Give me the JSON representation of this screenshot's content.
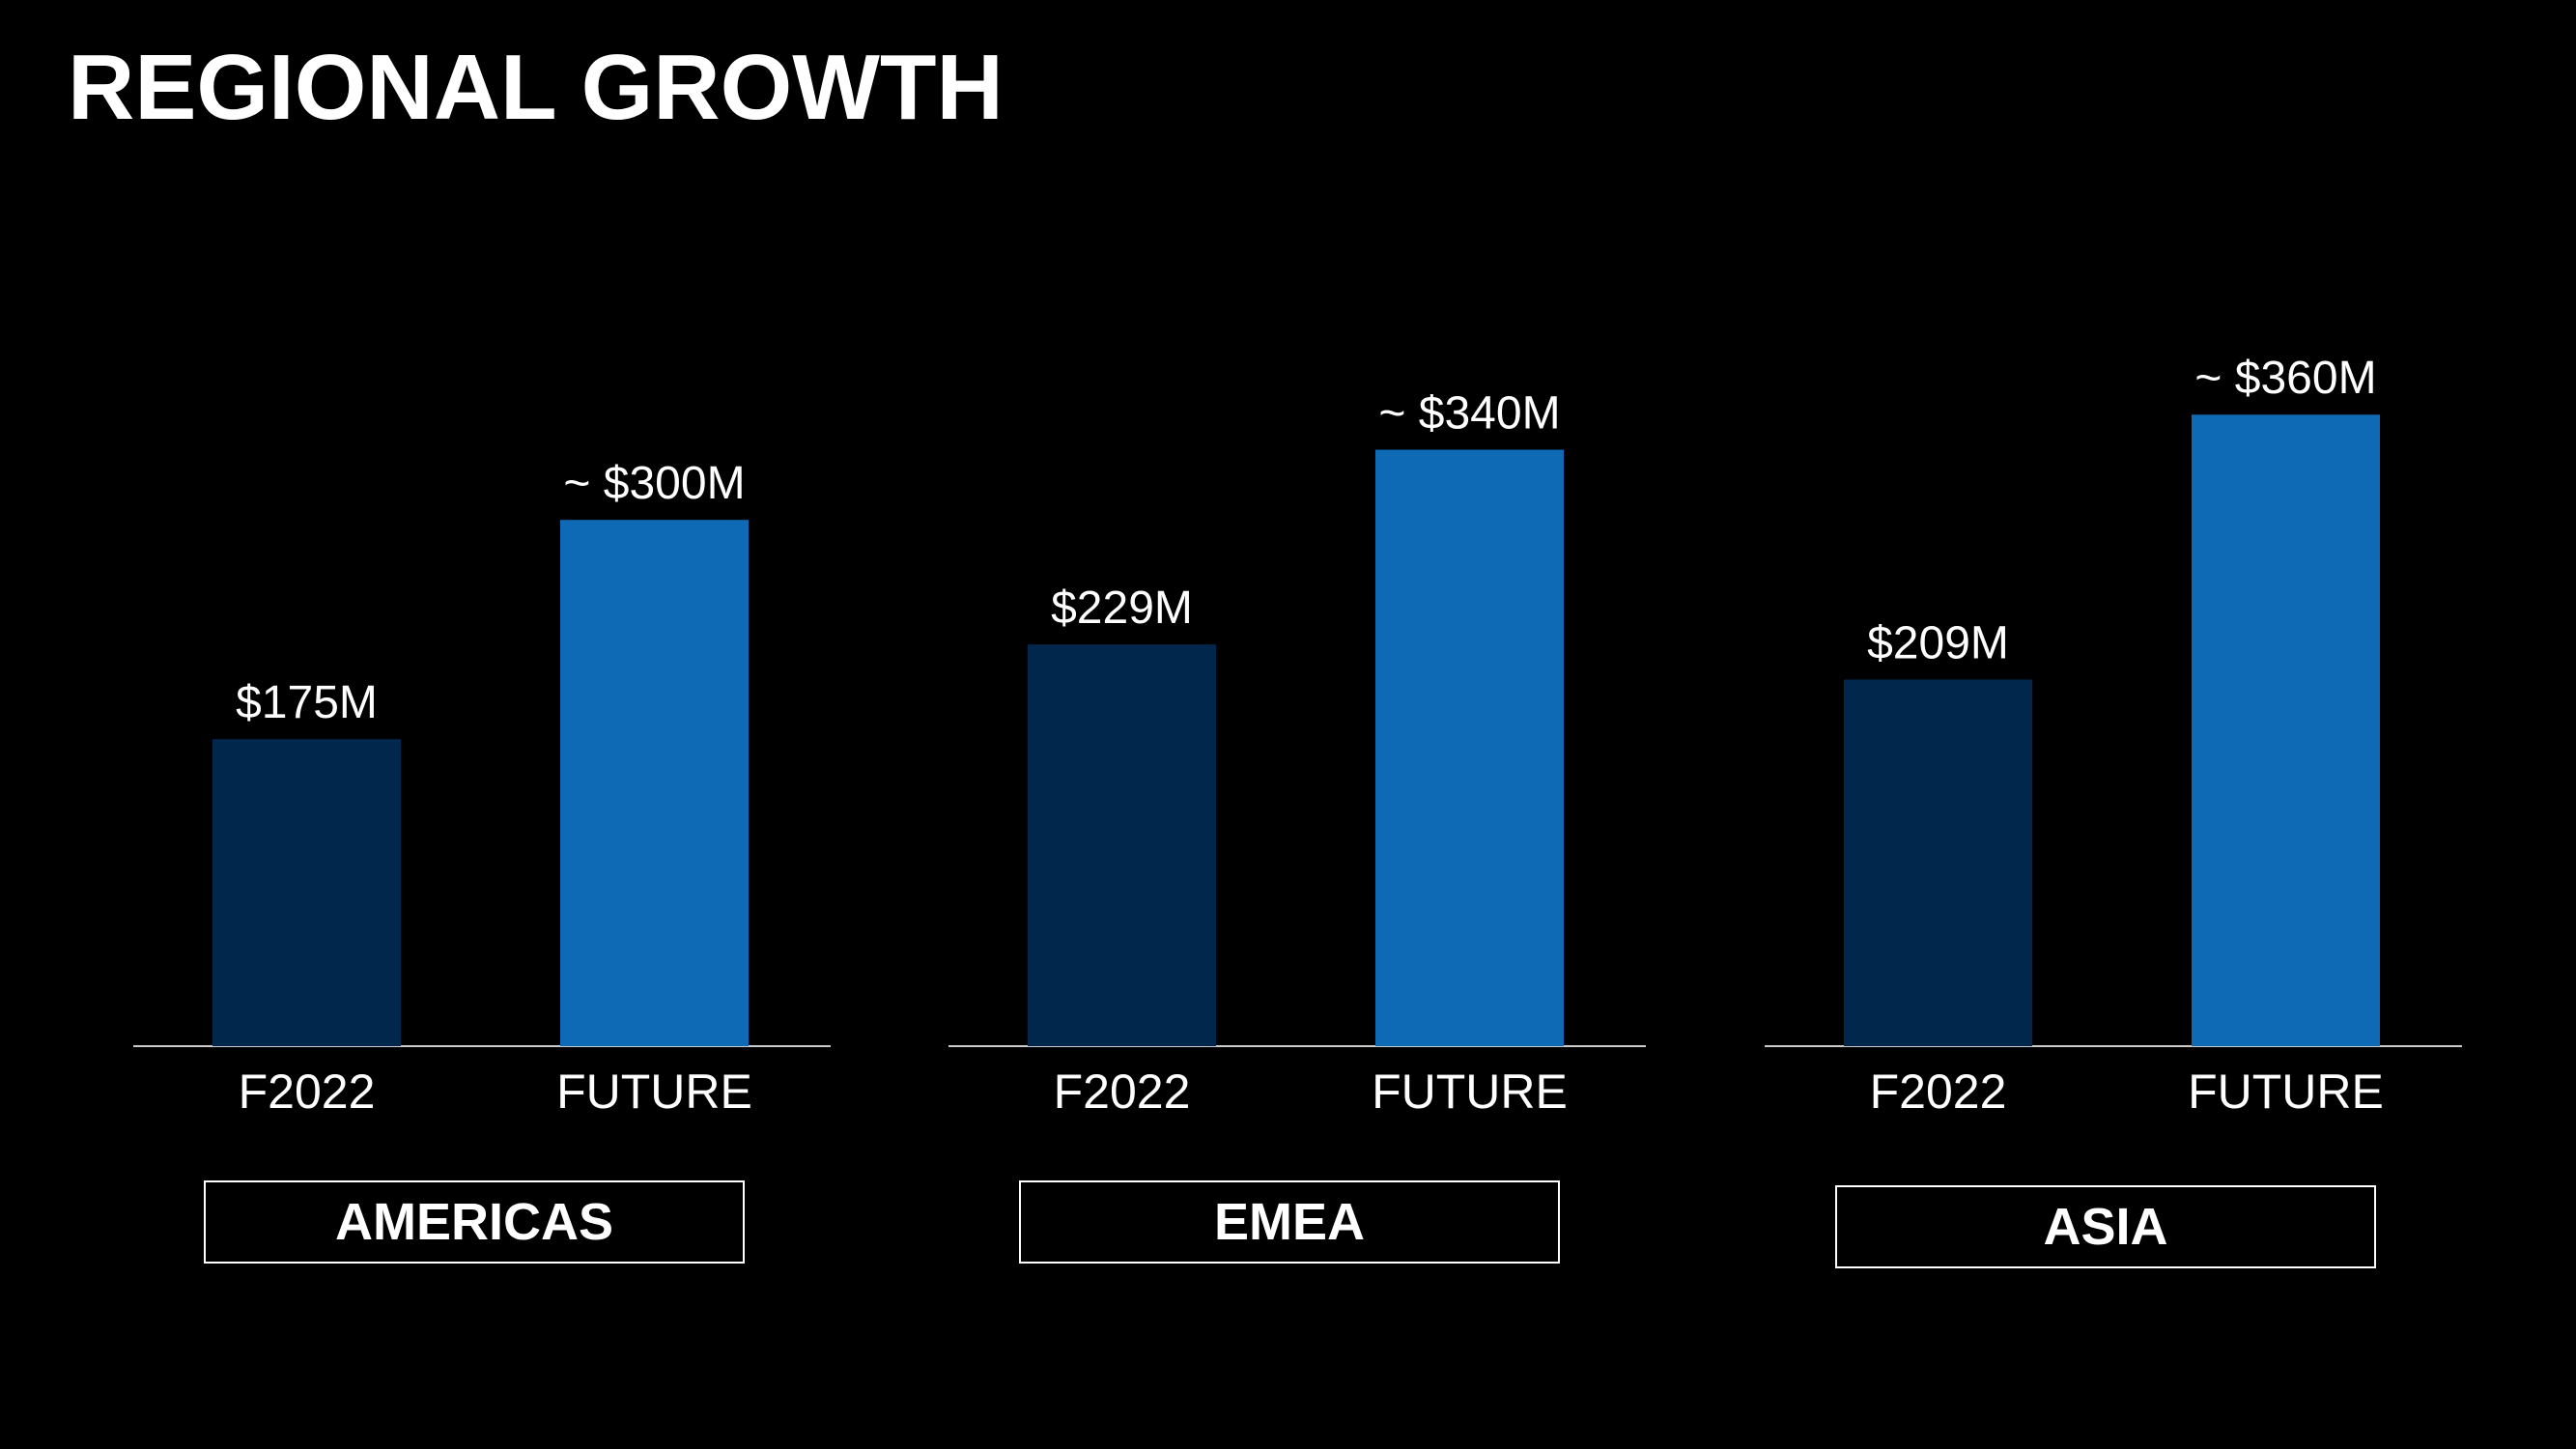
{
  "slide": {
    "title": "REGIONAL GROWTH"
  },
  "colors": {
    "background": "#000000",
    "f2022_bar": "#02274D",
    "future_bar": "#0F6AB5",
    "text": "#FFFFFF",
    "axis": "#CCCCCC"
  },
  "chart_data": [
    {
      "type": "bar",
      "region": "AMERICAS",
      "categories": [
        "F2022",
        "FUTURE"
      ],
      "values": [
        175,
        300
      ],
      "value_labels": [
        "$175M",
        "~ $300M"
      ],
      "unit": "$M"
    },
    {
      "type": "bar",
      "region": "EMEA",
      "categories": [
        "F2022",
        "FUTURE"
      ],
      "values": [
        229,
        340
      ],
      "value_labels": [
        "$229M",
        "~ $340M"
      ],
      "unit": "$M"
    },
    {
      "type": "bar",
      "region": "ASIA",
      "categories": [
        "F2022",
        "FUTURE"
      ],
      "values": [
        209,
        360
      ],
      "value_labels": [
        "$209M",
        "~ $360M"
      ],
      "unit": "$M"
    }
  ]
}
